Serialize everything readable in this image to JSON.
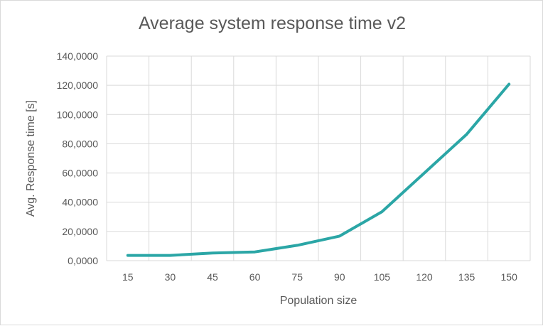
{
  "chart_data": {
    "type": "line",
    "title": "Average system response time v2",
    "xlabel": "Population size",
    "ylabel": "Avg. Response time [s]",
    "categories": [
      "15",
      "30",
      "45",
      "60",
      "75",
      "90",
      "105",
      "120",
      "135",
      "150"
    ],
    "series": [
      {
        "values": [
          3.6,
          3.6,
          5.2,
          6.0,
          10.5,
          16.8,
          33.5,
          60.0,
          86.5,
          120.8
        ]
      }
    ],
    "ylim": [
      0,
      140
    ],
    "yticks": [
      0,
      20,
      40,
      60,
      80,
      100,
      120,
      140
    ],
    "ytick_labels": [
      "0,0000",
      "20,0000",
      "40,0000",
      "60,0000",
      "80,0000",
      "100,0000",
      "120,0000",
      "140,0000"
    ],
    "grid": true,
    "legend": "none",
    "colors": {
      "line": "#2ba6a6",
      "grid": "#d9d9d9",
      "text": "#595959"
    }
  }
}
